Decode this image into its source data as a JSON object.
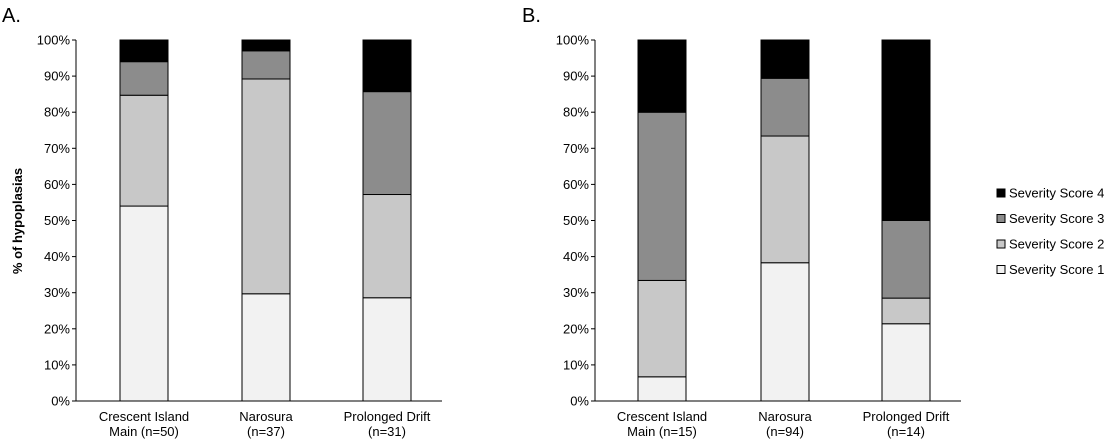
{
  "colors": {
    "Severity Score 1": "#f2f2f2",
    "Severity Score 2": "#c8c8c8",
    "Severity Score 3": "#8c8c8c",
    "Severity Score 4": "#000000"
  },
  "legend": {
    "placement": "right",
    "items": [
      "Severity Score 4",
      "Severity Score 3",
      "Severity Score 2",
      "Severity Score 1"
    ]
  },
  "chart_data": [
    {
      "type": "bar",
      "stacked": true,
      "panel_label": "A.",
      "ylabel": "% of hypoplasias",
      "ylim": [
        0,
        100
      ],
      "yticks": [
        "0%",
        "10%",
        "20%",
        "30%",
        "40%",
        "50%",
        "60%",
        "70%",
        "80%",
        "90%",
        "100%"
      ],
      "categories": [
        [
          "Crescent Island",
          "Main (n=50)"
        ],
        [
          "Narosura",
          "(n=37)"
        ],
        [
          "Prolonged Drift",
          "(n=31)"
        ]
      ],
      "series": [
        {
          "name": "Severity Score 1",
          "values": [
            54,
            29.7,
            28.6
          ]
        },
        {
          "name": "Severity Score 2",
          "values": [
            30.7,
            59.5,
            28.6
          ]
        },
        {
          "name": "Severity Score 3",
          "values": [
            9.3,
            7.8,
            28.5
          ]
        },
        {
          "name": "Severity Score 4",
          "values": [
            6,
            3,
            14.3
          ]
        }
      ]
    },
    {
      "type": "bar",
      "stacked": true,
      "panel_label": "B.",
      "ylim": [
        0,
        100
      ],
      "yticks": [
        "0%",
        "10%",
        "20%",
        "30%",
        "40%",
        "50%",
        "60%",
        "70%",
        "80%",
        "90%",
        "100%"
      ],
      "categories": [
        [
          "Crescent Island",
          "Main (n=15)"
        ],
        [
          "Narosura",
          "(n=94)"
        ],
        [
          "Prolonged Drift",
          "(n=14)"
        ]
      ],
      "series": [
        {
          "name": "Severity Score 1",
          "values": [
            6.7,
            38.3,
            21.4
          ]
        },
        {
          "name": "Severity Score 2",
          "values": [
            26.7,
            35.1,
            7.1
          ]
        },
        {
          "name": "Severity Score 3",
          "values": [
            46.6,
            16.0,
            21.5
          ]
        },
        {
          "name": "Severity Score 4",
          "values": [
            20,
            10.6,
            50
          ]
        }
      ]
    }
  ]
}
